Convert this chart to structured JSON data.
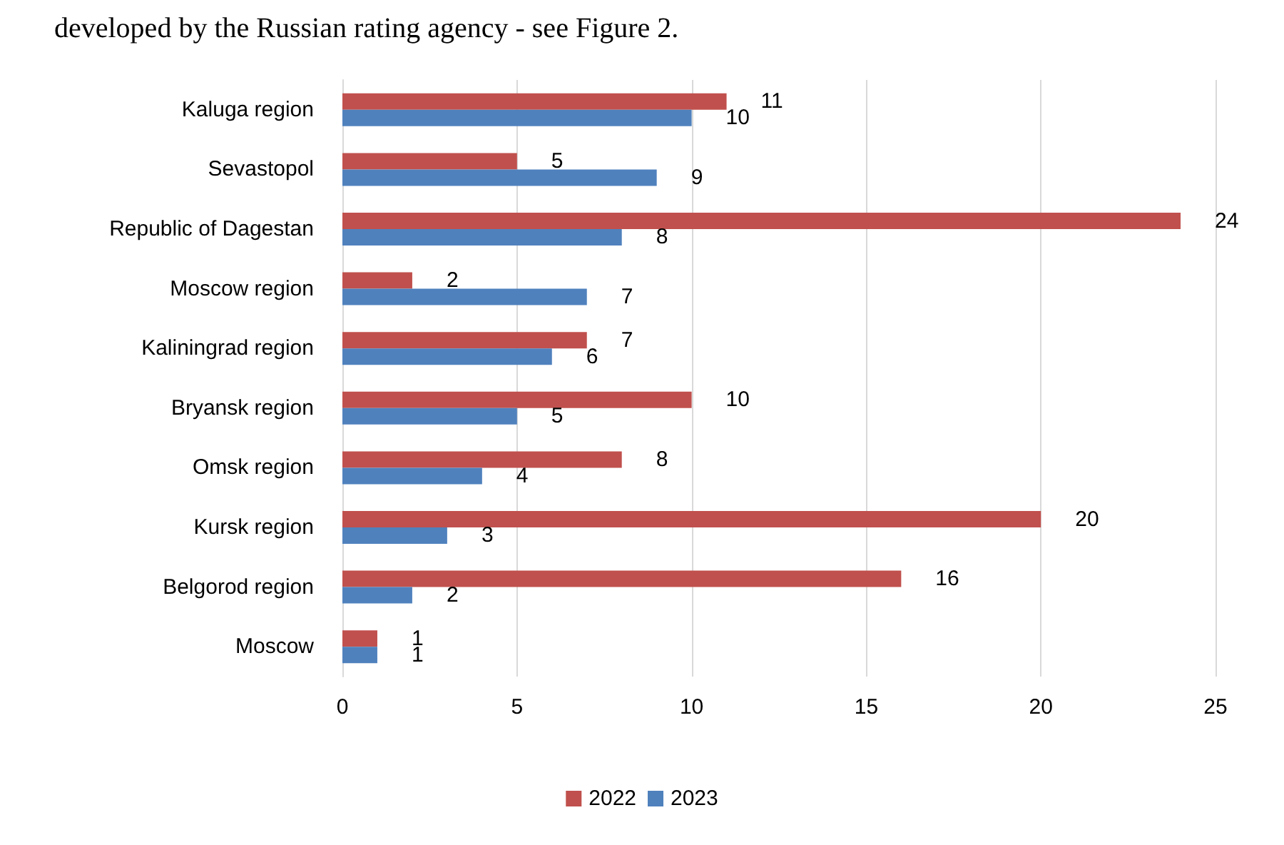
{
  "chart_data": {
    "type": "bar",
    "orientation": "horizontal",
    "categories": [
      "Kaluga region",
      "Sevastopol",
      "Republic of Dagestan",
      "Moscow region",
      "Kaliningrad region",
      "Bryansk region",
      "Omsk region",
      "Kursk region",
      "Belgorod region",
      "Moscow"
    ],
    "series": [
      {
        "name": "2022",
        "color": "#c0504d",
        "values": [
          11,
          5,
          24,
          2,
          7,
          10,
          8,
          20,
          16,
          1
        ]
      },
      {
        "name": "2023",
        "color": "#4f81bd",
        "values": [
          10,
          9,
          8,
          7,
          6,
          5,
          4,
          3,
          2,
          1
        ]
      }
    ],
    "xlim": [
      0,
      25
    ],
    "xticks": [
      0,
      5,
      10,
      15,
      20,
      25
    ],
    "grid": "x",
    "legend": "bottom",
    "data_labels": true,
    "annotations": [
      "developed by the Russian rating agency - see Figure 2."
    ]
  }
}
